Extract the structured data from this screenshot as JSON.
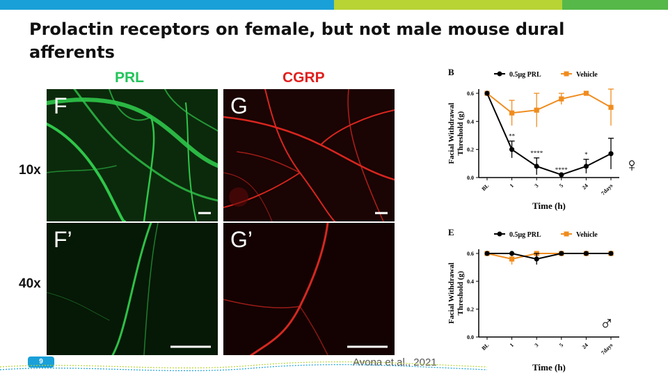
{
  "slide": {
    "title": "Prolactin receptors on female, but not male mouse dural afferents",
    "page_number": "9",
    "citation": "Avona et.al., 2021",
    "topbar_colors": [
      "#1aa0d8",
      "#b7d334",
      "#55b848"
    ]
  },
  "micrographs": {
    "col_labels": {
      "prl": "PRL",
      "cgrp": "CGRP"
    },
    "col_colors": {
      "prl": "#22c45a",
      "cgrp": "#e0201e"
    },
    "row_labels": {
      "low": "10x",
      "high": "40x"
    },
    "panels": {
      "f": "F",
      "g": "G",
      "f_prime": "F’",
      "g_prime": "G’"
    }
  },
  "chart_data": [
    {
      "type": "line",
      "panel_label": "B",
      "symbol": "♀",
      "xlabel": "Time (h)",
      "ylabel": [
        "Facial Withdrawal",
        "Threshold (g)"
      ],
      "categories": [
        "BL",
        "1",
        "3",
        "5",
        "24",
        "7days"
      ],
      "ylim": [
        0,
        0.6
      ],
      "yticks": [
        "0.0",
        "0.2",
        "0.4",
        "0.6"
      ],
      "legend": [
        "0.5μg PRL",
        "Vehicle"
      ],
      "series": [
        {
          "name": "0.5μg PRL",
          "color": "#000000",
          "marker": "circle",
          "values": [
            0.6,
            0.2,
            0.08,
            0.02,
            0.08,
            0.17
          ],
          "err": [
            0,
            0.06,
            0.06,
            0.0,
            0.05,
            0.11
          ]
        },
        {
          "name": "Vehicle",
          "color": "#f08c1e",
          "marker": "square",
          "values": [
            0.6,
            0.46,
            0.48,
            0.56,
            0.6,
            0.5
          ],
          "err": [
            0,
            0.09,
            0.12,
            0.04,
            0.0,
            0.13
          ]
        }
      ],
      "annotations": [
        "**",
        "****",
        "****",
        "*"
      ]
    },
    {
      "type": "line",
      "panel_label": "E",
      "symbol": "♂",
      "xlabel": "Time (h)",
      "ylabel": [
        "Facial Withdrawal",
        "Threshold (g)"
      ],
      "categories": [
        "BL",
        "1",
        "3",
        "5",
        "24",
        "7days"
      ],
      "ylim": [
        0,
        0.6
      ],
      "yticks": [
        "0.0",
        "0.2",
        "0.4",
        "0.6"
      ],
      "legend": [
        "0.5μg PRL",
        "Vehicle"
      ],
      "series": [
        {
          "name": "0.5μg PRL",
          "color": "#000000",
          "marker": "circle",
          "values": [
            0.6,
            0.6,
            0.56,
            0.6,
            0.6,
            0.6
          ],
          "err": [
            0,
            0,
            0.04,
            0,
            0,
            0
          ]
        },
        {
          "name": "Vehicle",
          "color": "#f08c1e",
          "marker": "square",
          "values": [
            0.6,
            0.56,
            0.6,
            0.6,
            0.6,
            0.6
          ],
          "err": [
            0,
            0.04,
            0,
            0,
            0,
            0
          ]
        }
      ],
      "annotations": []
    }
  ]
}
